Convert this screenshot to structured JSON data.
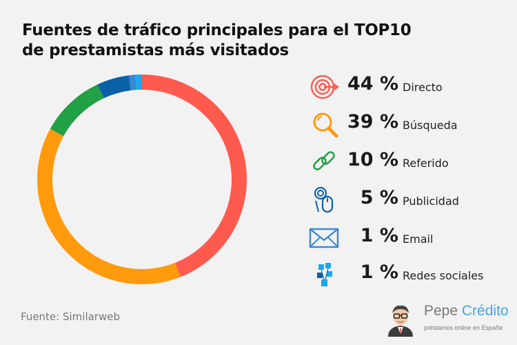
{
  "title_line1": "Fuentes de tráfico principales para el TOP10",
  "title_line2": "de prestamistas más visitados",
  "source": "Fuente: Similarweb",
  "brand": {
    "name_part1": "Pepe ",
    "name_part2": "Crédito",
    "tagline": "préstamos online en España",
    "accent": "#4aa3df"
  },
  "chart_data": {
    "type": "pie",
    "style": "donut",
    "categories": [
      "Directo",
      "Búsqueda",
      "Referido",
      "Publicidad",
      "Email",
      "Redes sociales"
    ],
    "values": [
      44,
      39,
      10,
      5,
      1,
      1
    ],
    "value_labels": [
      "44 %",
      "39 %",
      "10 %",
      "5 %",
      "1 %",
      "1 %"
    ],
    "colors": [
      "#ff5a4e",
      "#ff9a0d",
      "#22a045",
      "#0a61a8",
      "#3a87d4",
      "#1ba8f0"
    ],
    "legend_placement": "right"
  },
  "legend": [
    {
      "pct": "44 %",
      "label": "Directo",
      "icon": "target-icon"
    },
    {
      "pct": "39 %",
      "label": "Búsqueda",
      "icon": "magnifier-icon"
    },
    {
      "pct": "10 %",
      "label": "Referido",
      "icon": "link-icon"
    },
    {
      "pct": "5 %",
      "label": "Publicidad",
      "icon": "mouse-click-icon"
    },
    {
      "pct": "1 %",
      "label": "Email",
      "icon": "envelope-icon"
    },
    {
      "pct": "1 %",
      "label": "Redes sociales",
      "icon": "social-network-icon"
    }
  ]
}
